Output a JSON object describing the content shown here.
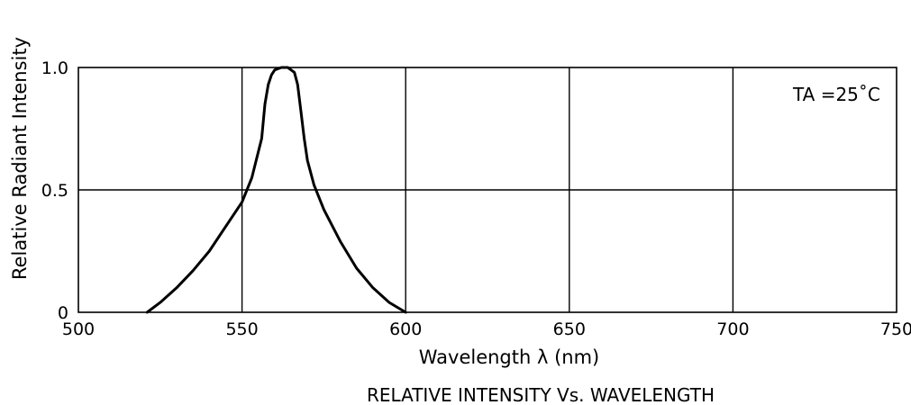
{
  "chart_data": {
    "type": "line",
    "title": "RELATIVE INTENSITY Vs. WAVELENGTH",
    "xlabel": "Wavelength λ (nm)",
    "ylabel": "Relative Radiant Intensity",
    "xlim": [
      500,
      750
    ],
    "ylim": [
      0,
      1.0
    ],
    "x_ticks": [
      500,
      550,
      600,
      650,
      700,
      750
    ],
    "y_ticks": [
      0,
      0.5,
      1.0
    ],
    "y_tick_labels": [
      "0",
      "0.5",
      "1.0"
    ],
    "y_grid_value": 0.5,
    "grid": true,
    "annotation": "TA =25˚C",
    "series": [
      {
        "x": [
          521,
          525,
          530,
          535,
          540,
          545,
          550,
          553,
          556,
          557,
          558,
          559,
          560,
          562,
          564,
          566,
          567,
          568,
          569,
          570,
          572,
          575,
          580,
          585,
          590,
          595,
          600
        ],
        "y": [
          0.0,
          0.04,
          0.1,
          0.17,
          0.25,
          0.35,
          0.45,
          0.55,
          0.71,
          0.85,
          0.93,
          0.97,
          0.99,
          1.0,
          1.0,
          0.98,
          0.93,
          0.82,
          0.71,
          0.62,
          0.52,
          0.42,
          0.29,
          0.18,
          0.1,
          0.04,
          0.0
        ]
      }
    ]
  }
}
